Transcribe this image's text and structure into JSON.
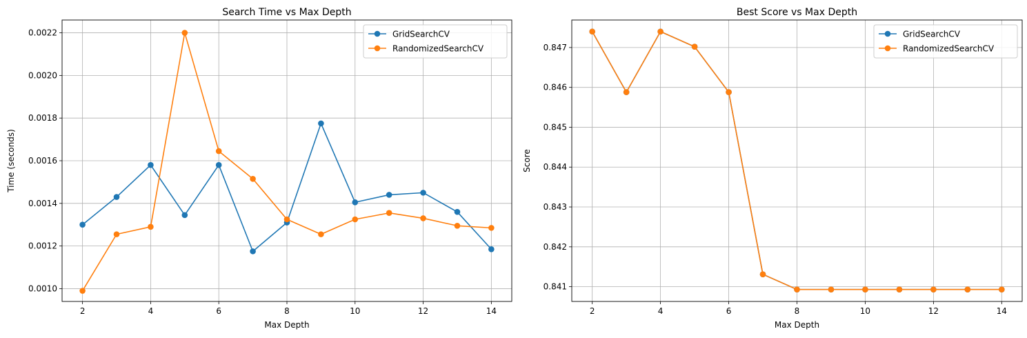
{
  "chart_data": [
    {
      "type": "line",
      "title": "Search Time vs Max Depth",
      "xlabel": "Max Depth",
      "ylabel": "Time (seconds)",
      "xlim": [
        1.4,
        14.6
      ],
      "ylim": [
        0.00094,
        0.00226
      ],
      "xticks": [
        2,
        4,
        6,
        8,
        10,
        12,
        14
      ],
      "xtick_labels": [
        "2",
        "4",
        "6",
        "8",
        "10",
        "12",
        "14"
      ],
      "yticks": [
        0.001,
        0.0012,
        0.0014,
        0.0016,
        0.0018,
        0.002,
        0.0022
      ],
      "ytick_labels": [
        "0.0010",
        "0.0012",
        "0.0014",
        "0.0016",
        "0.0018",
        "0.0020",
        "0.0022"
      ],
      "grid": true,
      "legend_position": "top-right",
      "x": [
        2,
        3,
        4,
        5,
        6,
        7,
        8,
        9,
        10,
        11,
        12,
        13,
        14
      ],
      "series": [
        {
          "name": "GridSearchCV",
          "color": "#1f77b4",
          "values": [
            0.0013,
            0.00143,
            0.00158,
            0.001345,
            0.00158,
            0.001175,
            0.00131,
            0.001775,
            0.001405,
            0.00144,
            0.00145,
            0.00136,
            0.001185
          ]
        },
        {
          "name": "RandomizedSearchCV",
          "color": "#ff7f0e",
          "values": [
            0.00099,
            0.001255,
            0.00129,
            0.0022,
            0.001645,
            0.001515,
            0.001325,
            0.001255,
            0.001325,
            0.001355,
            0.00133,
            0.001295,
            0.001285
          ]
        }
      ]
    },
    {
      "type": "line",
      "title": "Best Score vs Max Depth",
      "xlabel": "Max Depth",
      "ylabel": "Score",
      "xlim": [
        1.4,
        14.6
      ],
      "ylim": [
        0.84063,
        0.84769
      ],
      "xticks": [
        2,
        4,
        6,
        8,
        10,
        12,
        14
      ],
      "xtick_labels": [
        "2",
        "4",
        "6",
        "8",
        "10",
        "12",
        "14"
      ],
      "yticks": [
        0.841,
        0.842,
        0.843,
        0.844,
        0.845,
        0.846,
        0.847
      ],
      "ytick_labels": [
        "0.841",
        "0.842",
        "0.843",
        "0.844",
        "0.845",
        "0.846",
        "0.847"
      ],
      "grid": true,
      "legend_position": "top-right",
      "x": [
        2,
        3,
        4,
        5,
        6,
        7,
        8,
        9,
        10,
        11,
        12,
        13,
        14
      ],
      "series": [
        {
          "name": "GridSearchCV",
          "color": "#1f77b4",
          "values": [
            0.8474,
            0.84588,
            0.8474,
            0.84702,
            0.84588,
            0.84131,
            0.84093,
            0.84093,
            0.84093,
            0.84093,
            0.84093,
            0.84093,
            0.84093
          ]
        },
        {
          "name": "RandomizedSearchCV",
          "color": "#ff7f0e",
          "values": [
            0.8474,
            0.84588,
            0.8474,
            0.84702,
            0.84588,
            0.84131,
            0.84093,
            0.84093,
            0.84093,
            0.84093,
            0.84093,
            0.84093,
            0.84093
          ]
        }
      ]
    }
  ]
}
